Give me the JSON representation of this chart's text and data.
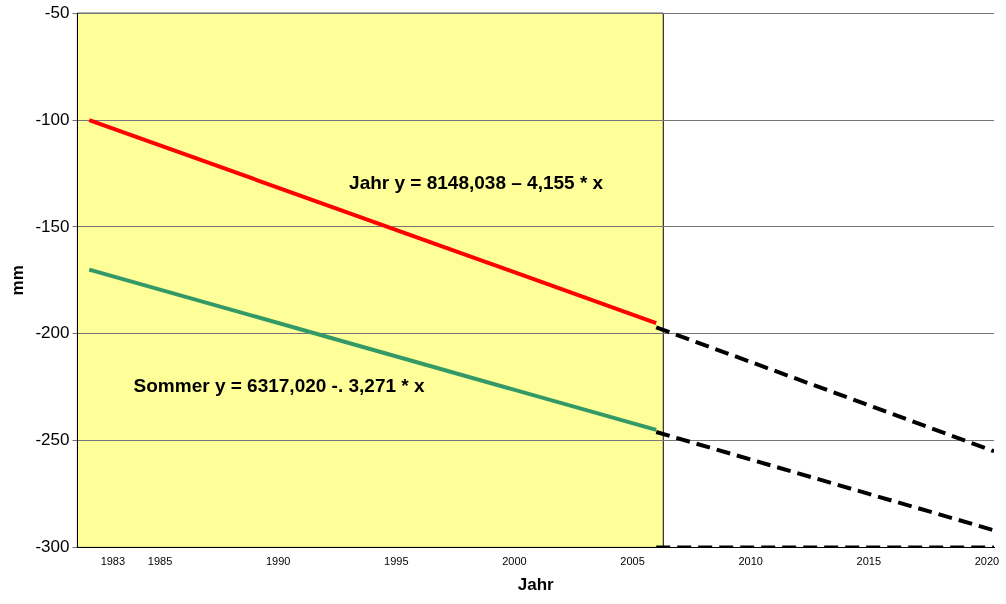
{
  "chart_data": {
    "type": "line",
    "xlabel": "Jahr",
    "ylabel": "mm",
    "xlim": [
      1981.5,
      2020.3
    ],
    "xticks": [
      1983,
      1985,
      1990,
      1995,
      2000,
      2005,
      2010,
      2015,
      2020
    ],
    "ylim": [
      -300,
      -50
    ],
    "yticks": [
      -300,
      -250,
      -200,
      -150,
      -100,
      -50
    ],
    "grid": "y",
    "legend": false,
    "marker": "none",
    "bands": [
      {
        "axis": "x",
        "from": 1981.5,
        "to": 2006.3,
        "color": "#ffff99"
      }
    ],
    "series": [
      {
        "color": "#ff0000",
        "x": [
          1982,
          2006
        ],
        "values": [
          -100,
          -195
        ],
        "line_style": "solid"
      },
      {
        "color": "#339966",
        "x": [
          1982,
          2006
        ],
        "values": [
          -170,
          -245
        ],
        "line_style": "solid"
      },
      {
        "color": "#000000",
        "x": [
          2006,
          2020.3
        ],
        "values": [
          -197,
          -255
        ],
        "line_style": "dashed"
      },
      {
        "color": "#000000",
        "x": [
          2006,
          2020.3
        ],
        "values": [
          -246,
          -292
        ],
        "line_style": "dashed"
      },
      {
        "color": "#000000",
        "x": [
          2006,
          2020.3
        ],
        "values": [
          -300,
          -300
        ],
        "line_style": "dashed"
      }
    ],
    "annotations": [
      "Jahr y = 8148,038 – 4,155 * x",
      "Sommer y = 6317,020 -. 3,271 * x"
    ]
  }
}
